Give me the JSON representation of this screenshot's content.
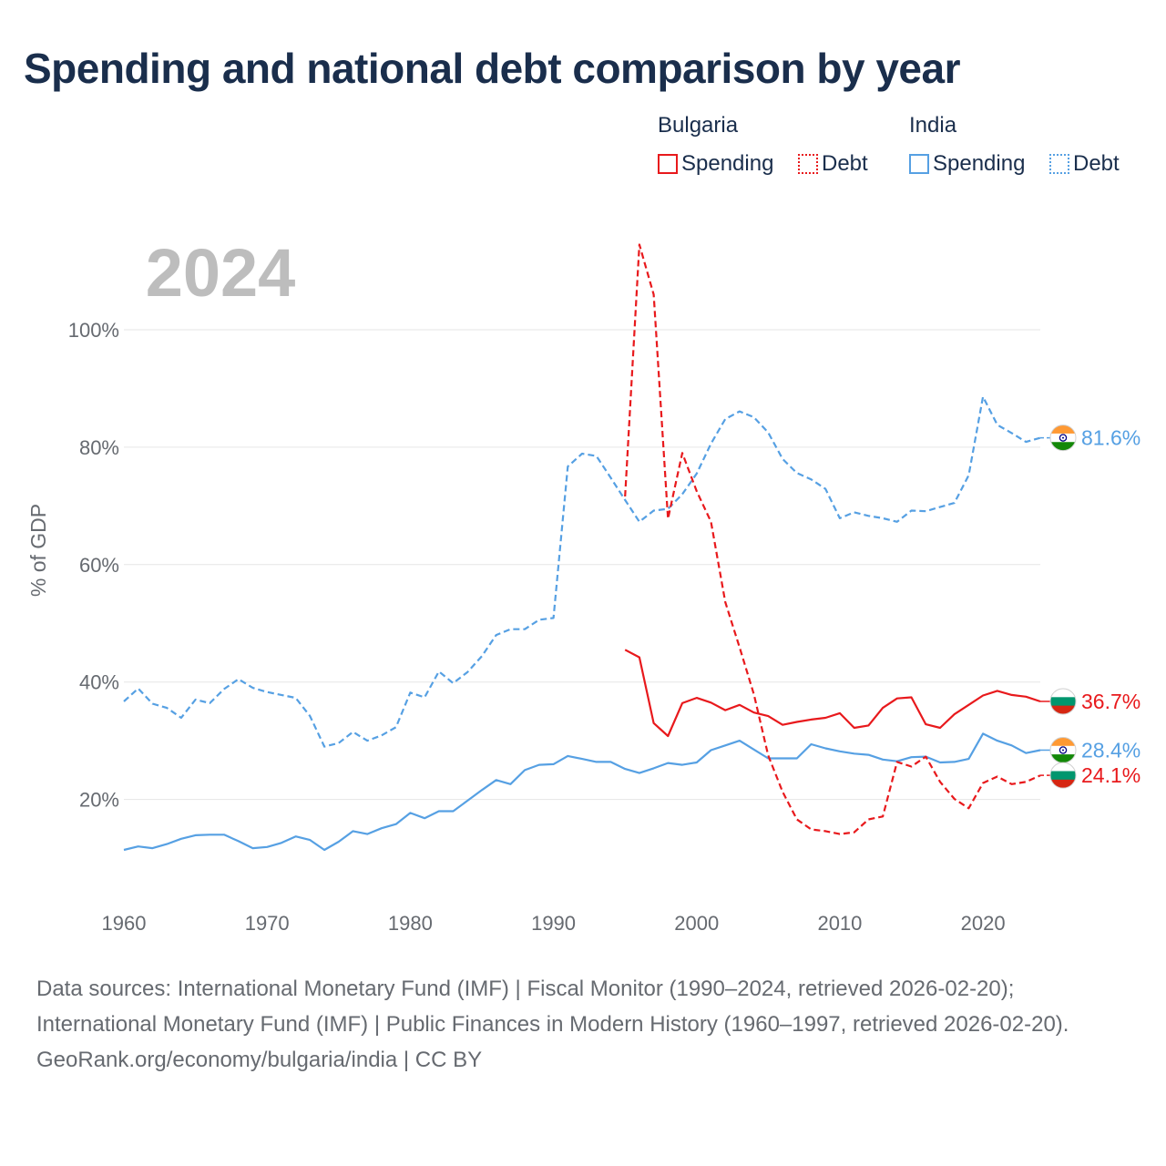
{
  "title": "Spending and national debt comparison by year",
  "legend": {
    "groups": [
      {
        "country": "Bulgaria",
        "color": "#e8191c",
        "items": [
          "Spending",
          "Debt"
        ]
      },
      {
        "country": "India",
        "color": "#56a0e3",
        "items": [
          "Spending",
          "Debt"
        ]
      }
    ]
  },
  "year_label": "2024",
  "footer": {
    "sources": "Data sources: International Monetary Fund (IMF) | Fiscal Monitor (1990–2024, retrieved 2026-02-20); International Monetary Fund (IMF) | Public Finances in Modern History (1960–1997, retrieved 2026-02-20).",
    "credit": "GeoRank.org/economy/bulgaria/india | CC BY"
  },
  "chart_data": {
    "type": "line",
    "title": "Spending and national debt comparison by year",
    "ylabel": "% of GDP",
    "xlabel": "",
    "xlim": [
      1960,
      2024
    ],
    "ylim": [
      0,
      100
    ],
    "x_ticks": [
      1960,
      1970,
      1980,
      1990,
      2000,
      2010,
      2020
    ],
    "y_ticks": [
      20,
      40,
      60,
      80,
      100
    ],
    "y_tick_labels": [
      "20%",
      "40%",
      "60%",
      "80%",
      "100%"
    ],
    "series": [
      {
        "name": "India Debt",
        "country": "India",
        "measure": "Debt",
        "style": "dashed",
        "color": "#56a0e3",
        "end_label": "81.6%",
        "x": [
          1960,
          1961,
          1962,
          1963,
          1964,
          1965,
          1966,
          1967,
          1968,
          1969,
          1970,
          1971,
          1972,
          1973,
          1974,
          1975,
          1976,
          1977,
          1978,
          1979,
          1980,
          1981,
          1982,
          1983,
          1984,
          1985,
          1986,
          1987,
          1988,
          1989,
          1990,
          1991,
          1992,
          1993,
          1994,
          1995,
          1996,
          1997,
          1998,
          1999,
          2000,
          2001,
          2002,
          2003,
          2004,
          2005,
          2006,
          2007,
          2008,
          2009,
          2010,
          2011,
          2012,
          2013,
          2014,
          2015,
          2016,
          2017,
          2018,
          2019,
          2020,
          2021,
          2022,
          2023,
          2024
        ],
        "values": [
          36.7,
          38.9,
          36.3,
          35.6,
          33.9,
          37.0,
          36.4,
          38.8,
          40.5,
          39.0,
          38.3,
          37.8,
          37.3,
          34.2,
          29.0,
          29.6,
          31.5,
          30.0,
          30.9,
          32.3,
          38.2,
          37.4,
          41.8,
          39.8,
          41.7,
          44.4,
          48.0,
          49.0,
          49.0,
          50.6,
          50.9,
          76.7,
          78.9,
          78.5,
          74.8,
          71.0,
          67.3,
          69.2,
          69.5,
          72.0,
          75.5,
          80.6,
          84.8,
          86.1,
          85.1,
          82.5,
          78.0,
          75.6,
          74.5,
          72.9,
          67.9,
          68.9,
          68.3,
          67.9,
          67.3,
          69.2,
          69.1,
          69.8,
          70.5,
          75.2,
          88.6,
          83.8,
          82.4,
          80.9,
          81.6
        ]
      },
      {
        "name": "India Spending",
        "country": "India",
        "measure": "Spending",
        "style": "solid",
        "color": "#56a0e3",
        "end_label": "28.4%",
        "x": [
          1960,
          1961,
          1962,
          1963,
          1964,
          1965,
          1966,
          1967,
          1968,
          1969,
          1970,
          1971,
          1972,
          1973,
          1974,
          1975,
          1976,
          1977,
          1978,
          1979,
          1980,
          1981,
          1982,
          1983,
          1984,
          1985,
          1986,
          1987,
          1988,
          1989,
          1990,
          1991,
          1992,
          1993,
          1994,
          1995,
          1996,
          1997,
          1998,
          1999,
          2000,
          2001,
          2002,
          2003,
          2004,
          2005,
          2006,
          2007,
          2008,
          2009,
          2010,
          2011,
          2012,
          2013,
          2014,
          2015,
          2016,
          2017,
          2018,
          2019,
          2020,
          2021,
          2022,
          2023,
          2024
        ],
        "values": [
          11.4,
          12.0,
          11.7,
          12.4,
          13.3,
          13.9,
          14.0,
          14.0,
          12.9,
          11.7,
          11.9,
          12.6,
          13.7,
          13.1,
          11.4,
          12.8,
          14.6,
          14.1,
          15.1,
          15.8,
          17.7,
          16.8,
          18.0,
          18.0,
          19.8,
          21.6,
          23.3,
          22.6,
          25.0,
          25.9,
          26.0,
          27.4,
          26.9,
          26.4,
          26.4,
          25.2,
          24.5,
          25.3,
          26.2,
          25.9,
          26.3,
          28.4,
          29.2,
          30.0,
          28.5,
          27.0,
          27.0,
          27.0,
          29.4,
          28.7,
          28.2,
          27.8,
          27.6,
          26.8,
          26.5,
          27.2,
          27.3,
          26.3,
          26.4,
          26.9,
          31.2,
          30.0,
          29.2,
          27.9,
          28.4
        ]
      },
      {
        "name": "Bulgaria Debt",
        "country": "Bulgaria",
        "measure": "Debt",
        "style": "dashed",
        "color": "#e8191c",
        "end_label": "24.1%",
        "x": [
          1995,
          1996,
          1997,
          1998,
          1999,
          2000,
          2001,
          2002,
          2003,
          2004,
          2005,
          2006,
          2007,
          2008,
          2009,
          2010,
          2011,
          2012,
          2013,
          2014,
          2015,
          2016,
          2017,
          2018,
          2019,
          2020,
          2021,
          2022,
          2023,
          2024
        ],
        "values": [
          71.6,
          114.5,
          106.0,
          67.8,
          79.0,
          72.5,
          67.3,
          53.6,
          45.9,
          37.9,
          27.5,
          21.3,
          16.6,
          14.9,
          14.6,
          14.1,
          14.4,
          16.6,
          17.1,
          26.4,
          25.6,
          27.3,
          23.0,
          20.1,
          18.5,
          22.8,
          23.9,
          22.6,
          23.0,
          24.1
        ]
      },
      {
        "name": "Bulgaria Spending",
        "country": "Bulgaria",
        "measure": "Spending",
        "style": "solid",
        "color": "#e8191c",
        "end_label": "36.7%",
        "x": [
          1995,
          1996,
          1997,
          1998,
          1999,
          2000,
          2001,
          2002,
          2003,
          2004,
          2005,
          2006,
          2007,
          2008,
          2009,
          2010,
          2011,
          2012,
          2013,
          2014,
          2015,
          2016,
          2017,
          2018,
          2019,
          2020,
          2021,
          2022,
          2023,
          2024
        ],
        "values": [
          45.5,
          44.2,
          33.0,
          30.8,
          36.4,
          37.3,
          36.5,
          35.2,
          36.1,
          34.8,
          34.2,
          32.7,
          33.2,
          33.6,
          33.9,
          34.7,
          32.2,
          32.6,
          35.6,
          37.2,
          37.4,
          32.8,
          32.2,
          34.5,
          36.1,
          37.7,
          38.5,
          37.8,
          37.5,
          36.7
        ]
      }
    ]
  }
}
